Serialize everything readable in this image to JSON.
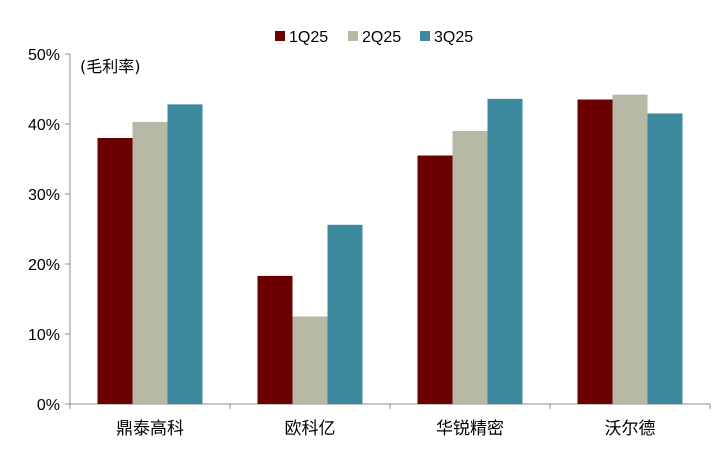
{
  "chart_data": {
    "type": "bar",
    "unit_label": "(毛利率)",
    "categories": [
      "鼎泰高科",
      "欧科亿",
      "华锐精密",
      "沃尔德"
    ],
    "series": [
      {
        "name": "1Q25",
        "color": "#6b0000",
        "values": [
          38.0,
          18.3,
          35.5,
          43.5
        ]
      },
      {
        "name": "2Q25",
        "color": "#b8b8a6",
        "values": [
          40.3,
          12.5,
          39.0,
          44.2
        ]
      },
      {
        "name": "3Q25",
        "color": "#3b8a9e",
        "values": [
          42.8,
          25.6,
          43.6,
          41.5
        ]
      }
    ],
    "ylim": [
      0,
      50
    ],
    "yticks": [
      "0%",
      "10%",
      "20%",
      "30%",
      "40%",
      "50%"
    ],
    "legend_position": "top",
    "grid": false
  }
}
